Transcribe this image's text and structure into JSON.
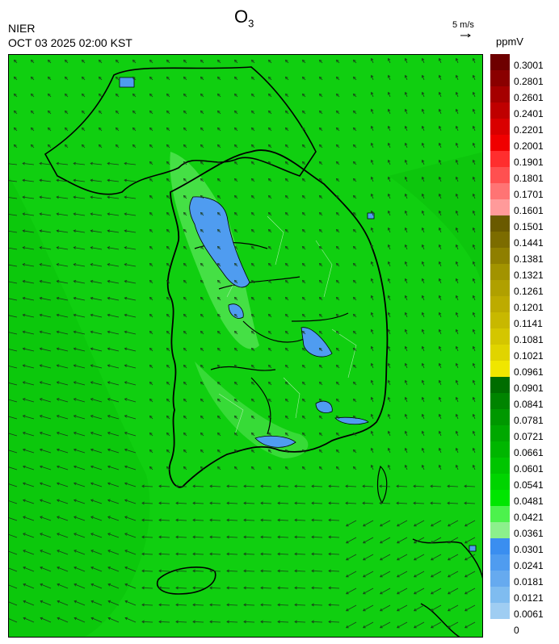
{
  "header": {
    "title_main": "O",
    "title_sub": "3",
    "org": "NIER",
    "time": "OCT 03 2025 02:00 KST",
    "vector_scale": "5 m/s",
    "unit": "ppmV"
  },
  "legend": {
    "labels": [
      "0.3001",
      "0.2801",
      "0.2601",
      "0.2401",
      "0.2201",
      "0.2001",
      "0.1901",
      "0.1801",
      "0.1701",
      "0.1601",
      "0.1501",
      "0.1441",
      "0.1381",
      "0.1321",
      "0.1261",
      "0.1201",
      "0.1141",
      "0.1081",
      "0.1021",
      "0.0961",
      "0.0901",
      "0.0841",
      "0.0781",
      "0.0721",
      "0.0661",
      "0.0601",
      "0.0541",
      "0.0481",
      "0.0421",
      "0.0361",
      "0.0301",
      "0.0241",
      "0.0181",
      "0.0121",
      "0.0061",
      "0"
    ],
    "colors": [
      "#6e0000",
      "#8a0000",
      "#a50000",
      "#bf0000",
      "#d90000",
      "#f00000",
      "#ff2e2e",
      "#ff5050",
      "#ff7474",
      "#ff9a9a",
      "#6a5a00",
      "#7c6c00",
      "#8f7f00",
      "#a29300",
      "#b0a000",
      "#bdab00",
      "#c8b800",
      "#d4c600",
      "#e0d400",
      "#f0e600",
      "#006d00",
      "#008400",
      "#009800",
      "#00a800",
      "#00b600",
      "#00c500",
      "#00d400",
      "#00e600",
      "#4cf24c",
      "#8cf08c",
      "#3a8ef0",
      "#4f9cf0",
      "#66aaef",
      "#7fbcf0",
      "#9fcdf2"
    ]
  },
  "map": {
    "background_color": "#12d412",
    "low_ozone_color": "#4f9cf0",
    "coast_color": "#000000"
  }
}
